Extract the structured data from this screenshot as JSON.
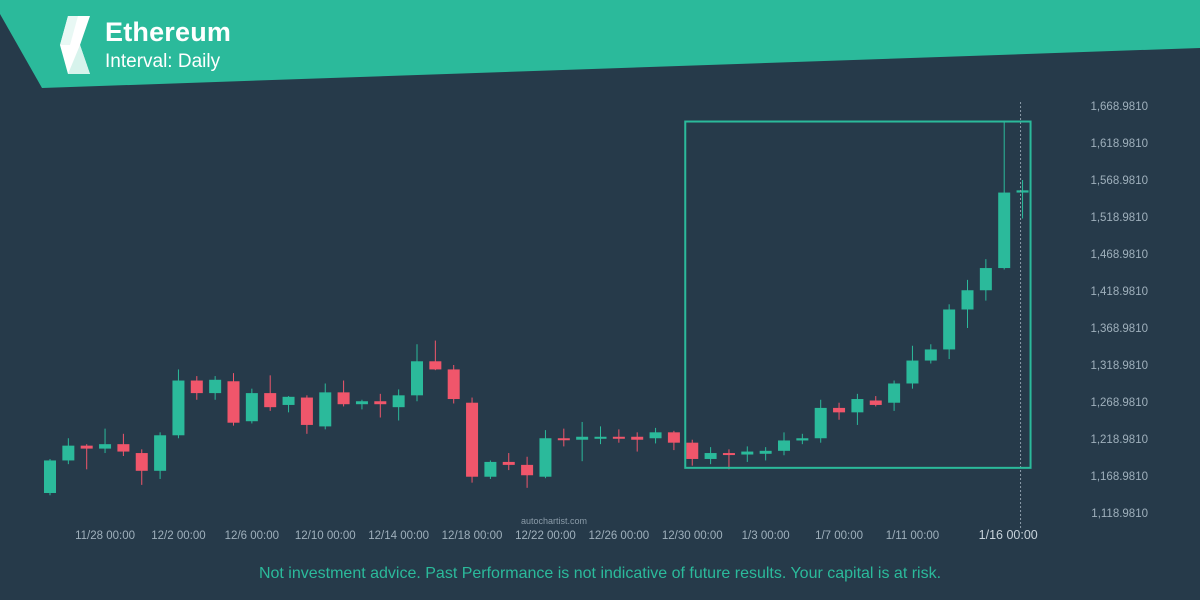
{
  "header": {
    "title": "Ethereum",
    "subtitle": "Interval: Daily"
  },
  "watermark": "autochartist.com",
  "disclaimer": "Not investment advice. Past Performance is not indicative of future results. Your capital is at risk.",
  "colors": {
    "background": "#263a4a",
    "brand": "#2bba9b",
    "up": "#2bba9b",
    "down": "#f0566b",
    "axis_text": "#9fb0bc",
    "pattern_box": "#2bba9b"
  },
  "chart_data": {
    "type": "candlestick",
    "title": "Ethereum",
    "xlabel": "",
    "ylabel": "",
    "ylim": [
      1107,
      1690
    ],
    "y_ticks": [
      "1,668.9810",
      "1,618.9810",
      "1,568.9810",
      "1,518.9810",
      "1,468.9810",
      "1,418.9810",
      "1,368.9810",
      "1,318.9810",
      "1,268.9810",
      "1,218.9810",
      "1,168.9810",
      "1,118.9810"
    ],
    "y_tick_values": [
      1668.981,
      1618.981,
      1568.981,
      1518.981,
      1468.981,
      1418.981,
      1368.981,
      1318.981,
      1268.981,
      1218.981,
      1168.981,
      1118.981
    ],
    "x_ticks": [
      {
        "label": "11/28 00:00",
        "index": 3
      },
      {
        "label": "12/2 00:00",
        "index": 7
      },
      {
        "label": "12/6 00:00",
        "index": 11
      },
      {
        "label": "12/10 00:00",
        "index": 15
      },
      {
        "label": "12/14 00:00",
        "index": 19
      },
      {
        "label": "12/18 00:00",
        "index": 23
      },
      {
        "label": "12/22 00:00",
        "index": 27
      },
      {
        "label": "12/26 00:00",
        "index": 31
      },
      {
        "label": "12/30 00:00",
        "index": 35
      },
      {
        "label": "1/3 00:00",
        "index": 39
      },
      {
        "label": "1/7 00:00",
        "index": 43
      },
      {
        "label": "1/11 00:00",
        "index": 47
      },
      {
        "label": "1/16 00:00",
        "index": 52,
        "highlight": true
      }
    ],
    "candles": [
      {
        "o": 1146,
        "h": 1192,
        "l": 1143,
        "c": 1190
      },
      {
        "o": 1190,
        "h": 1220,
        "l": 1185,
        "c": 1210
      },
      {
        "o": 1210,
        "h": 1212,
        "l": 1178,
        "c": 1206
      },
      {
        "o": 1206,
        "h": 1233,
        "l": 1200,
        "c": 1212
      },
      {
        "o": 1212,
        "h": 1226,
        "l": 1196,
        "c": 1202
      },
      {
        "o": 1200,
        "h": 1205,
        "l": 1157,
        "c": 1176
      },
      {
        "o": 1176,
        "h": 1228,
        "l": 1165,
        "c": 1224
      },
      {
        "o": 1224,
        "h": 1313,
        "l": 1220,
        "c": 1298
      },
      {
        "o": 1298,
        "h": 1304,
        "l": 1272,
        "c": 1281
      },
      {
        "o": 1281,
        "h": 1304,
        "l": 1272,
        "c": 1299
      },
      {
        "o": 1297,
        "h": 1308,
        "l": 1237,
        "c": 1241
      },
      {
        "o": 1243,
        "h": 1287,
        "l": 1240,
        "c": 1281
      },
      {
        "o": 1281,
        "h": 1305,
        "l": 1257,
        "c": 1262
      },
      {
        "o": 1265,
        "h": 1277,
        "l": 1255,
        "c": 1276
      },
      {
        "o": 1275,
        "h": 1278,
        "l": 1226,
        "c": 1238
      },
      {
        "o": 1236,
        "h": 1294,
        "l": 1232,
        "c": 1282
      },
      {
        "o": 1282,
        "h": 1298,
        "l": 1263,
        "c": 1266
      },
      {
        "o": 1266,
        "h": 1272,
        "l": 1259,
        "c": 1270
      },
      {
        "o": 1270,
        "h": 1280,
        "l": 1248,
        "c": 1266
      },
      {
        "o": 1262,
        "h": 1286,
        "l": 1244,
        "c": 1278
      },
      {
        "o": 1278,
        "h": 1347,
        "l": 1270,
        "c": 1324
      },
      {
        "o": 1324,
        "h": 1352,
        "l": 1312,
        "c": 1313
      },
      {
        "o": 1313,
        "h": 1319,
        "l": 1267,
        "c": 1273
      },
      {
        "o": 1268,
        "h": 1275,
        "l": 1160,
        "c": 1168
      },
      {
        "o": 1168,
        "h": 1190,
        "l": 1165,
        "c": 1188
      },
      {
        "o": 1188,
        "h": 1200,
        "l": 1177,
        "c": 1184
      },
      {
        "o": 1184,
        "h": 1195,
        "l": 1153,
        "c": 1170
      },
      {
        "o": 1168,
        "h": 1231,
        "l": 1166,
        "c": 1220
      },
      {
        "o": 1220,
        "h": 1233,
        "l": 1209,
        "c": 1218
      },
      {
        "o": 1218,
        "h": 1242,
        "l": 1189,
        "c": 1222
      },
      {
        "o": 1220,
        "h": 1236,
        "l": 1212,
        "c": 1222
      },
      {
        "o": 1222,
        "h": 1232,
        "l": 1214,
        "c": 1220
      },
      {
        "o": 1222,
        "h": 1228,
        "l": 1202,
        "c": 1218
      },
      {
        "o": 1220,
        "h": 1234,
        "l": 1213,
        "c": 1228
      },
      {
        "o": 1228,
        "h": 1230,
        "l": 1204,
        "c": 1214
      },
      {
        "o": 1214,
        "h": 1218,
        "l": 1183,
        "c": 1192
      },
      {
        "o": 1192,
        "h": 1208,
        "l": 1185,
        "c": 1200
      },
      {
        "o": 1200,
        "h": 1205,
        "l": 1178,
        "c": 1199
      },
      {
        "o": 1198,
        "h": 1209,
        "l": 1188,
        "c": 1202
      },
      {
        "o": 1199,
        "h": 1208,
        "l": 1190,
        "c": 1203
      },
      {
        "o": 1203,
        "h": 1228,
        "l": 1197,
        "c": 1217
      },
      {
        "o": 1217,
        "h": 1226,
        "l": 1212,
        "c": 1220
      },
      {
        "o": 1220,
        "h": 1272,
        "l": 1214,
        "c": 1261
      },
      {
        "o": 1261,
        "h": 1268,
        "l": 1245,
        "c": 1255
      },
      {
        "o": 1255,
        "h": 1280,
        "l": 1238,
        "c": 1273
      },
      {
        "o": 1271,
        "h": 1277,
        "l": 1263,
        "c": 1265
      },
      {
        "o": 1268,
        "h": 1298,
        "l": 1257,
        "c": 1294
      },
      {
        "o": 1294,
        "h": 1345,
        "l": 1287,
        "c": 1325
      },
      {
        "o": 1325,
        "h": 1347,
        "l": 1321,
        "c": 1340
      },
      {
        "o": 1340,
        "h": 1401,
        "l": 1327,
        "c": 1394
      },
      {
        "o": 1394,
        "h": 1434,
        "l": 1369,
        "c": 1420
      },
      {
        "o": 1420,
        "h": 1462,
        "l": 1406,
        "c": 1450
      },
      {
        "o": 1450,
        "h": 1649,
        "l": 1448,
        "c": 1552
      },
      {
        "o": 1552,
        "h": 1569,
        "l": 1517,
        "c": 1555
      }
    ],
    "pattern_box": {
      "start_index": 35,
      "end_index": 53,
      "y_top": 1648,
      "y_bottom": 1180
    },
    "current_time_index": 53
  }
}
